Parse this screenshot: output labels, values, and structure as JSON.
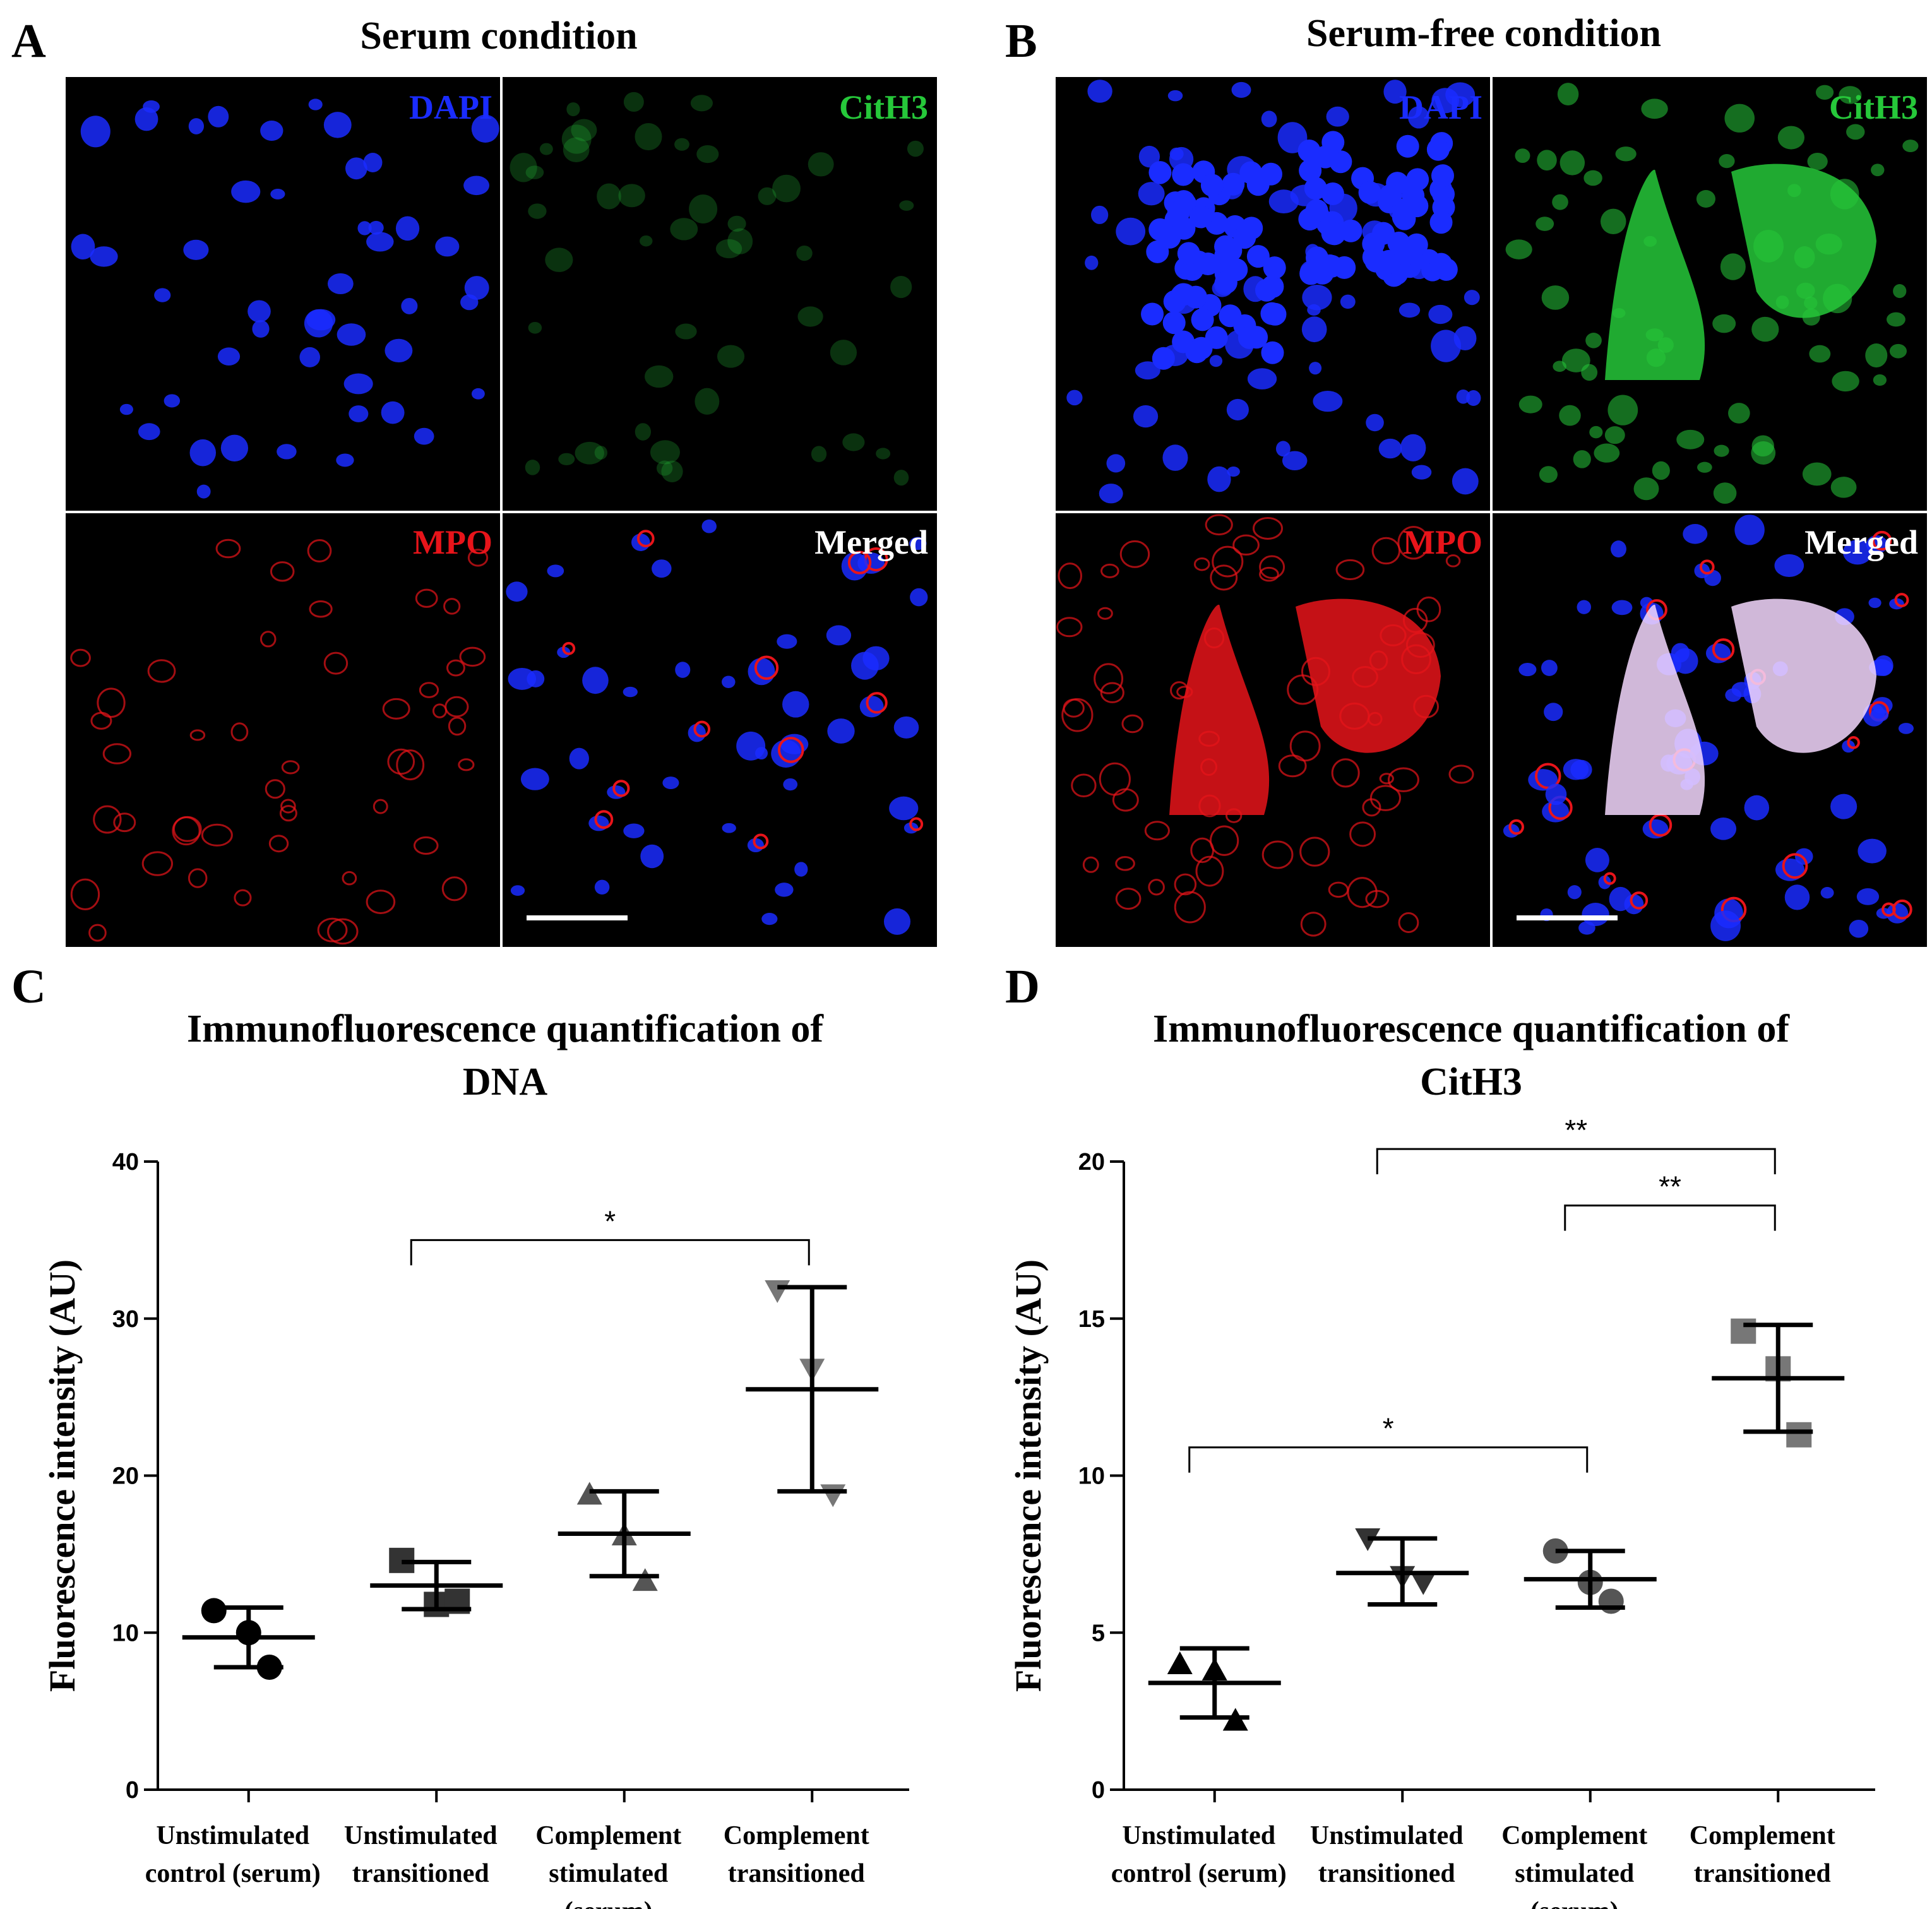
{
  "panels": {
    "A": {
      "letter": "A",
      "title": "Serum condition",
      "quadrants": {
        "tl": "DAPI",
        "tr": "CitH3",
        "bl": "MPO",
        "br": "Merged"
      }
    },
    "B": {
      "letter": "B",
      "title": "Serum-free condition",
      "quadrants": {
        "tl": "DAPI",
        "tr": "CitH3",
        "bl": "MPO",
        "br": "Merged"
      }
    },
    "C": {
      "letter": "C"
    },
    "D": {
      "letter": "D"
    }
  },
  "colors": {
    "dapi": "#1a2cff",
    "cith3": "#26c83a",
    "mpo": "#e8141a",
    "merged": "#ffffff",
    "series": [
      "#000000",
      "#333333",
      "#555555",
      "#777777"
    ]
  },
  "chart_data": [
    {
      "type": "scatter",
      "title": "Immunofluorescence quantification of DNA",
      "title_lines": [
        "Immunofluorescence quantification of",
        "DNA"
      ],
      "ylabel": "Fluorescence intensity (AU)",
      "ylim": [
        0,
        40
      ],
      "yticks": [
        0,
        10,
        20,
        30,
        40
      ],
      "categories": [
        [
          "Unstimulated",
          "control (serum)"
        ],
        [
          "Unstimulated",
          "transitioned"
        ],
        [
          "Complement",
          "stimulated",
          "(serum)"
        ],
        [
          "Complement",
          "transitioned"
        ]
      ],
      "markers": [
        "circle",
        "square",
        "triangle-up",
        "triangle-down"
      ],
      "points": [
        [
          11.4,
          10.0,
          7.8
        ],
        [
          14.6,
          11.8,
          12.0
        ],
        [
          18.8,
          16.2,
          13.3
        ],
        [
          31.8,
          26.8,
          18.8
        ]
      ],
      "mean": [
        9.7,
        13.0,
        16.3,
        25.5
      ],
      "err_low": [
        7.8,
        11.5,
        13.6,
        19.0
      ],
      "err_high": [
        11.6,
        14.5,
        19.0,
        32.0
      ],
      "significance": [
        {
          "from": 1,
          "to": 3,
          "label": "*",
          "y": 35.0
        }
      ]
    },
    {
      "type": "scatter",
      "title": "Immunofluorescence quantification of CitH3",
      "title_lines": [
        "Immunofluorescence quantification of",
        "CitH3"
      ],
      "ylabel": "Fluorescence intensity (AU)",
      "ylim": [
        0,
        20
      ],
      "yticks": [
        0,
        5,
        10,
        15,
        20
      ],
      "categories": [
        [
          "Unstimulated",
          "control (serum)"
        ],
        [
          "Unstimulated",
          "transitioned"
        ],
        [
          "Complement",
          "stimulated",
          "(serum)"
        ],
        [
          "Complement",
          "transitioned"
        ]
      ],
      "markers": [
        "triangle-up",
        "triangle-down",
        "circle",
        "square"
      ],
      "points": [
        [
          4.0,
          3.8,
          2.2
        ],
        [
          8.0,
          6.8,
          6.6
        ],
        [
          7.6,
          6.6,
          6.0
        ],
        [
          14.6,
          13.4,
          11.3
        ]
      ],
      "mean": [
        3.4,
        6.9,
        6.7,
        13.1
      ],
      "err_low": [
        2.3,
        5.9,
        5.8,
        11.4
      ],
      "err_high": [
        4.5,
        8.0,
        7.6,
        14.8
      ],
      "significance": [
        {
          "from": 0,
          "to": 2,
          "label": "*",
          "y": 10.9
        },
        {
          "from": 2,
          "to": 3,
          "label": "**",
          "y": 18.6
        },
        {
          "from": 1,
          "to": 3,
          "label": "**",
          "y": 20.4
        }
      ]
    }
  ]
}
